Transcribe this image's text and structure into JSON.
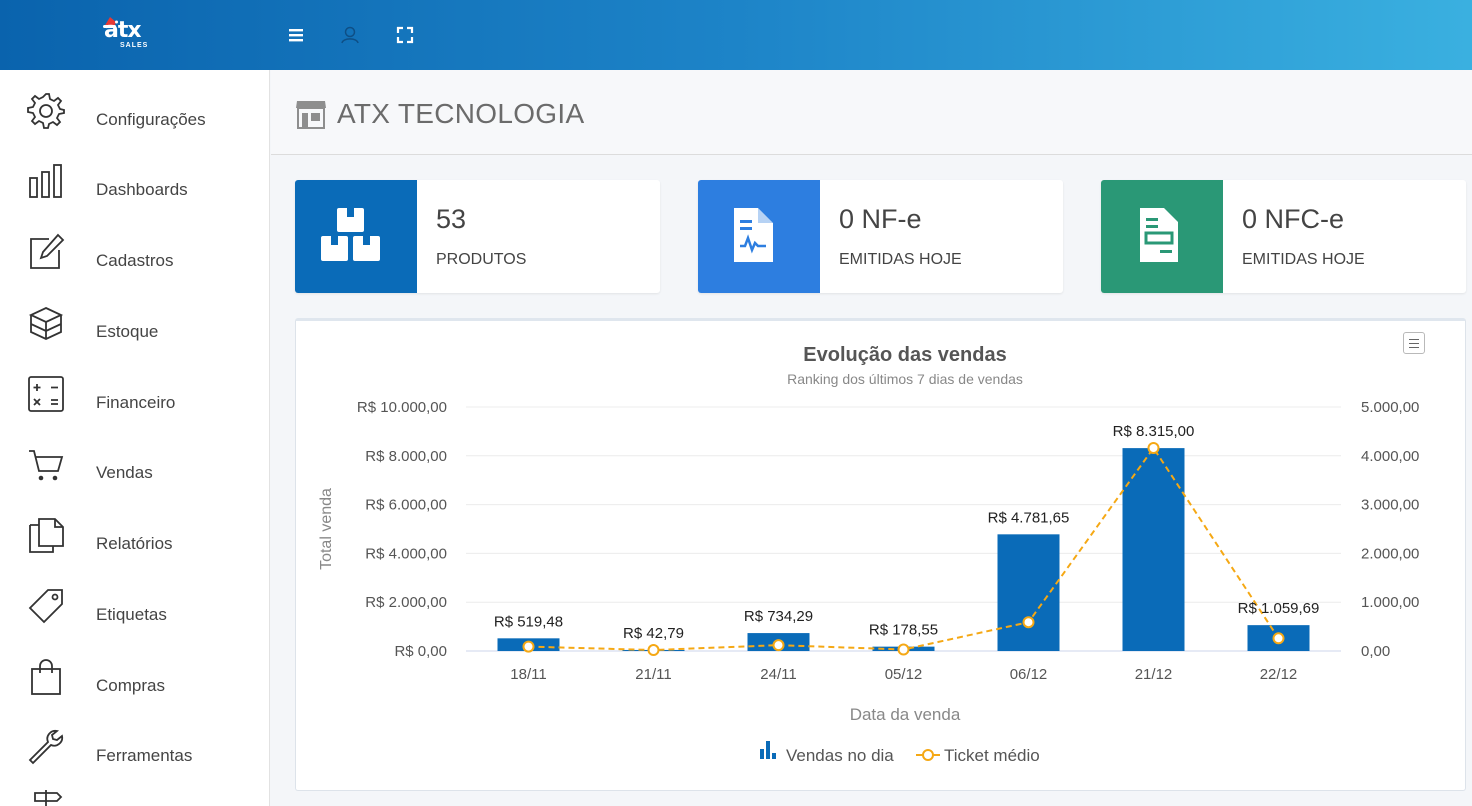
{
  "brand": {
    "logo_text": "atx",
    "logo_sub": "SALES"
  },
  "topbar": {
    "icons": [
      "menu-icon",
      "user-icon",
      "fullscreen-icon"
    ]
  },
  "sidebar": {
    "items": [
      {
        "label": "Configurações",
        "icon": "gear-icon"
      },
      {
        "label": "Dashboards",
        "icon": "bar-chart-icon"
      },
      {
        "label": "Cadastros",
        "icon": "edit-icon"
      },
      {
        "label": "Estoque",
        "icon": "boxes-icon"
      },
      {
        "label": "Financeiro",
        "icon": "calculator-icon"
      },
      {
        "label": "Vendas",
        "icon": "cart-icon"
      },
      {
        "label": "Relatórios",
        "icon": "documents-icon"
      },
      {
        "label": "Etiquetas",
        "icon": "tag-icon"
      },
      {
        "label": "Compras",
        "icon": "shopping-bag-icon"
      },
      {
        "label": "Ferramentas",
        "icon": "wrench-icon"
      }
    ]
  },
  "page": {
    "title": "ATX TECNOLOGIA"
  },
  "cards": [
    {
      "value": "53",
      "label": "PRODUTOS",
      "color": "#0a6bb8",
      "icon": "boxes-icon"
    },
    {
      "value": "0 NF-e",
      "label": "EMITIDAS HOJE",
      "color": "#2d7ee0",
      "icon": "invoice-icon"
    },
    {
      "value": "0 NFC-e",
      "label": "EMITIDAS HOJE",
      "color": "#2a9876",
      "icon": "receipt-icon"
    }
  ],
  "colors": {
    "bar": "#0a6bb8",
    "line": "#f5a814",
    "grid": "#ececec"
  },
  "chart_data": {
    "type": "bar",
    "title": "Evolução das vendas",
    "subtitle": "Ranking dos últimos 7 dias de vendas",
    "xlabel": "Data da venda",
    "ylabel": "Total venda",
    "categories": [
      "18/11",
      "21/11",
      "24/11",
      "05/12",
      "06/12",
      "21/12",
      "22/12"
    ],
    "ylim": [
      0,
      10000
    ],
    "y2lim": [
      0,
      5000
    ],
    "yticks": [
      "R$ 0,00",
      "R$ 2.000,00",
      "R$ 4.000,00",
      "R$ 6.000,00",
      "R$ 8.000,00",
      "R$ 10.000,00"
    ],
    "y2ticks": [
      "0,00",
      "1.000,00",
      "2.000,00",
      "3.000,00",
      "4.000,00",
      "5.000,00"
    ],
    "series": [
      {
        "name": "Vendas no dia",
        "type": "bar",
        "axis": "left",
        "values": [
          519.48,
          42.79,
          734.29,
          178.55,
          4781.65,
          8315.0,
          1059.69
        ],
        "labels": [
          "R$ 519,48",
          "R$ 42,79",
          "R$ 734,29",
          "R$ 178,55",
          "R$ 4.781,65",
          "R$ 8.315,00",
          "R$ 1.059,69"
        ]
      },
      {
        "name": "Ticket médio",
        "type": "line",
        "style": "dashed",
        "axis": "right",
        "values": [
          90,
          20,
          120,
          30,
          590,
          4160,
          260
        ]
      }
    ],
    "legend": "bottom-center",
    "grid": true
  }
}
